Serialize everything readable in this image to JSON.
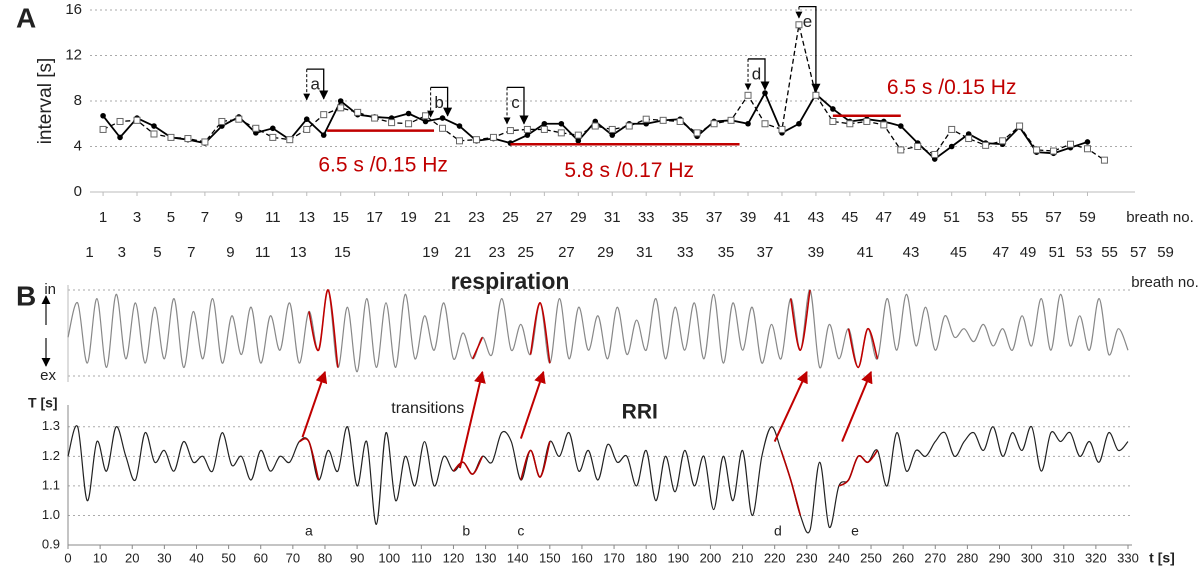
{
  "chart_data": [
    {
      "panel": "A",
      "type": "line",
      "ylabel": "interval [s]",
      "xlabel": "breath no.",
      "x": [
        1,
        2,
        3,
        4,
        5,
        6,
        7,
        8,
        9,
        10,
        11,
        12,
        13,
        14,
        15,
        16,
        17,
        18,
        19,
        20,
        21,
        22,
        23,
        24,
        25,
        26,
        27,
        28,
        29,
        30,
        31,
        32,
        33,
        34,
        35,
        36,
        37,
        38,
        39,
        40,
        41,
        42,
        43,
        44,
        45,
        46,
        47,
        48,
        49,
        50,
        51,
        52,
        53,
        54,
        55,
        56,
        57,
        58,
        59,
        60
      ],
      "xlim": [
        0.23,
        61.8
      ],
      "xticks": [
        1,
        3,
        5,
        7,
        9,
        11,
        13,
        15,
        17,
        19,
        21,
        23,
        25,
        27,
        29,
        31,
        33,
        35,
        37,
        39,
        41,
        43,
        45,
        47,
        49,
        51,
        53,
        55,
        57,
        59
      ],
      "ylim": [
        0,
        16
      ],
      "yticks": [
        0,
        4,
        8,
        12,
        16
      ],
      "grid": true,
      "series": [
        {
          "style": "solid",
          "marker": "dot",
          "color": "#000000",
          "values": [
            6.7,
            4.8,
            6.5,
            5.8,
            4.8,
            4.6,
            4.3,
            5.8,
            6.6,
            5.2,
            5.6,
            4.6,
            6.4,
            5.0,
            8.0,
            6.8,
            6.6,
            6.5,
            6.9,
            6.2,
            6.5,
            5.8,
            4.5,
            4.7,
            4.3,
            5.0,
            6.0,
            6.0,
            4.5,
            6.2,
            5.0,
            6.0,
            6.0,
            6.3,
            6.4,
            4.9,
            6.2,
            6.3,
            6.0,
            8.7,
            5.2,
            6.0,
            8.6,
            7.3,
            6.2,
            6.4,
            6.2,
            5.8,
            4.3,
            2.9,
            4.0,
            5.1,
            4.3,
            4.2,
            5.7,
            3.5,
            3.4,
            3.9,
            4.4,
            null
          ]
        },
        {
          "style": "dashed",
          "marker": "square",
          "color": "#000000",
          "values": [
            5.5,
            6.2,
            6.3,
            5.1,
            4.8,
            4.7,
            4.4,
            6.2,
            6.4,
            5.6,
            4.8,
            4.6,
            5.5,
            6.8,
            7.4,
            7.0,
            6.5,
            6.1,
            6.0,
            6.7,
            5.6,
            4.5,
            4.6,
            4.8,
            5.4,
            5.5,
            5.5,
            5.2,
            5.0,
            5.8,
            5.5,
            5.8,
            6.4,
            6.3,
            6.2,
            5.2,
            6.0,
            6.3,
            8.5,
            6.0,
            5.5,
            14.7,
            8.5,
            6.2,
            6.0,
            6.2,
            5.9,
            3.7,
            4.0,
            3.3,
            5.5,
            4.7,
            4.1,
            4.5,
            5.8,
            3.7,
            3.6,
            4.2,
            3.8,
            2.8
          ]
        }
      ],
      "x2label": "breath no.",
      "x2_labels": [
        {
          "value": 0.2,
          "label": "1"
        },
        {
          "value": 2.1,
          "label": "3"
        },
        {
          "value": 4.2,
          "label": "5"
        },
        {
          "value": 6.2,
          "label": "7"
        },
        {
          "value": 8.5,
          "label": "9"
        },
        {
          "value": 10.4,
          "label": "11"
        },
        {
          "value": 12.5,
          "label": "13"
        },
        {
          "value": 15.1,
          "label": "15"
        },
        {
          "value": 20.3,
          "label": "19"
        },
        {
          "value": 22.2,
          "label": "21"
        },
        {
          "value": 24.2,
          "label": "23"
        },
        {
          "value": 25.9,
          "label": "25"
        },
        {
          "value": 28.3,
          "label": "27"
        },
        {
          "value": 30.6,
          "label": "29"
        },
        {
          "value": 32.9,
          "label": "31"
        },
        {
          "value": 35.3,
          "label": "33"
        },
        {
          "value": 37.7,
          "label": "35"
        },
        {
          "value": 40.0,
          "label": "37"
        },
        {
          "value": 43.0,
          "label": "39"
        },
        {
          "value": 45.9,
          "label": "41"
        },
        {
          "value": 48.6,
          "label": "43"
        },
        {
          "value": 51.4,
          "label": "45"
        },
        {
          "value": 53.9,
          "label": "47"
        },
        {
          "value": 55.5,
          "label": "49"
        },
        {
          "value": 57.2,
          "label": "51"
        },
        {
          "value": 58.8,
          "label": "53"
        },
        {
          "value": 60.3,
          "label": "55"
        },
        {
          "value": 62.0,
          "label": "57"
        },
        {
          "value": 63.6,
          "label": "59"
        }
      ],
      "annotations": [
        "a",
        "b",
        "c",
        "d",
        "e",
        "6.5 s /0.15 Hz",
        "5.8 s /0.17 Hz",
        "6.5 s /0.15 Hz"
      ]
    },
    {
      "panel": "B",
      "type": "line",
      "title": "respiration",
      "color": "#888888",
      "highlight_color": "#c00000",
      "x": [
        0,
        3,
        6,
        9,
        12,
        15,
        18,
        21,
        24,
        27,
        30,
        33,
        36,
        39,
        42,
        45,
        48,
        51,
        54,
        57,
        60,
        63,
        66,
        69,
        72,
        75,
        78,
        81,
        84,
        87,
        90,
        93,
        96,
        99,
        102,
        105,
        108,
        111,
        114,
        117,
        120,
        123,
        126,
        129,
        132,
        135,
        138,
        141,
        144,
        147,
        150,
        153,
        156,
        159,
        162,
        165,
        168,
        171,
        174,
        177,
        180,
        183,
        186,
        189,
        192,
        195,
        198,
        201,
        204,
        207,
        210,
        213,
        216,
        219,
        222,
        225,
        228,
        231,
        234,
        237,
        240,
        243,
        246,
        249,
        252,
        255,
        258,
        261,
        264,
        267,
        270,
        273,
        276,
        279,
        282,
        285,
        288,
        291,
        294,
        297,
        300,
        303,
        306,
        309,
        312,
        315,
        318,
        321,
        324,
        327,
        330
      ],
      "values": [
        0.45,
        0.85,
        0.15,
        0.9,
        0.1,
        0.95,
        0.2,
        0.85,
        0.15,
        0.8,
        0.2,
        0.9,
        0.1,
        0.75,
        0.2,
        0.9,
        0.15,
        0.7,
        0.25,
        0.8,
        0.15,
        0.7,
        0.3,
        0.85,
        0.15,
        0.75,
        0.3,
        1.0,
        0.1,
        0.8,
        0.05,
        0.9,
        0.1,
        0.85,
        0.1,
        0.95,
        0.2,
        0.7,
        0.3,
        0.85,
        0.2,
        0.5,
        0.2,
        0.45,
        0.25,
        0.9,
        0.3,
        0.6,
        0.25,
        0.85,
        0.15,
        0.9,
        0.2,
        0.8,
        0.3,
        0.7,
        0.2,
        0.8,
        0.25,
        0.65,
        0.3,
        0.9,
        0.2,
        0.8,
        0.3,
        0.85,
        0.2,
        0.95,
        0.15,
        0.85,
        0.3,
        0.8,
        0.15,
        0.6,
        0.2,
        0.9,
        0.3,
        1.0,
        0.1,
        0.6,
        0.2,
        0.55,
        0.1,
        0.55,
        0.2,
        0.9,
        0.3,
        0.95,
        0.35,
        0.8,
        0.3,
        0.7,
        0.45,
        0.55,
        0.4,
        0.6,
        0.35,
        0.55,
        0.3,
        0.7,
        0.35,
        0.9,
        0.3,
        0.95,
        0.35,
        0.7,
        0.3,
        0.9,
        0.25,
        0.55,
        0.3
      ],
      "xlim": [
        0,
        330
      ],
      "ylim": [
        0,
        1
      ],
      "yticks": [
        {
          "value": 1,
          "label": "in"
        },
        {
          "value": 0,
          "label": "ex"
        }
      ],
      "grid": true,
      "highlights": [
        [
          74,
          84
        ],
        [
          124,
          131
        ],
        [
          144,
          150
        ],
        [
          225,
          233
        ],
        [
          243,
          252
        ]
      ]
    },
    {
      "type": "line",
      "ylabel": "T [s]",
      "xlabel": "t [s]",
      "color": "#222222",
      "highlight_color": "#b00000",
      "x": [
        0,
        3,
        6,
        9,
        12,
        15,
        18,
        21,
        24,
        27,
        30,
        33,
        36,
        39,
        42,
        45,
        48,
        51,
        54,
        57,
        60,
        63,
        66,
        69,
        72,
        75,
        78,
        81,
        84,
        87,
        90,
        93,
        96,
        99,
        102,
        105,
        108,
        111,
        114,
        117,
        120,
        123,
        126,
        129,
        132,
        135,
        138,
        141,
        144,
        147,
        150,
        153,
        156,
        159,
        162,
        165,
        168,
        171,
        174,
        177,
        180,
        183,
        186,
        189,
        192,
        195,
        198,
        201,
        204,
        207,
        210,
        213,
        216,
        219,
        222,
        225,
        228,
        231,
        234,
        237,
        240,
        243,
        246,
        249,
        252,
        255,
        258,
        261,
        264,
        267,
        270,
        273,
        276,
        279,
        282,
        285,
        288,
        291,
        294,
        297,
        300,
        303,
        306,
        309,
        312,
        315,
        318,
        321,
        324,
        327,
        330
      ],
      "values": [
        1.2,
        1.3,
        1.05,
        1.25,
        1.15,
        1.3,
        1.2,
        1.12,
        1.28,
        1.18,
        1.22,
        1.15,
        1.25,
        1.18,
        1.2,
        1.15,
        1.28,
        1.17,
        1.2,
        1.12,
        1.22,
        1.15,
        1.2,
        1.18,
        1.25,
        1.25,
        1.12,
        1.22,
        1.15,
        1.3,
        1.1,
        1.25,
        0.97,
        1.28,
        1.05,
        1.2,
        1.1,
        1.25,
        1.1,
        1.2,
        1.15,
        1.18,
        1.14,
        1.2,
        1.18,
        1.28,
        1.25,
        1.12,
        1.22,
        1.13,
        1.25,
        1.2,
        1.28,
        1.15,
        1.22,
        1.12,
        1.24,
        1.18,
        1.2,
        1.1,
        1.22,
        1.05,
        1.2,
        1.08,
        1.22,
        1.1,
        1.2,
        1.02,
        1.2,
        1.05,
        1.22,
        1.0,
        1.2,
        1.3,
        1.22,
        1.12,
        1.0,
        0.95,
        1.18,
        0.96,
        1.1,
        1.12,
        1.2,
        1.18,
        1.22,
        1.1,
        1.28,
        1.15,
        1.22,
        1.2,
        1.25,
        1.28,
        1.2,
        1.25,
        1.28,
        1.22,
        1.3,
        1.2,
        1.28,
        1.22,
        1.3,
        1.15,
        1.28,
        1.25,
        1.28,
        1.2,
        1.25,
        1.18,
        1.28,
        1.22,
        1.25
      ],
      "xlim": [
        0,
        330
      ],
      "xticks": [
        0,
        10,
        20,
        30,
        40,
        50,
        60,
        70,
        80,
        90,
        100,
        110,
        120,
        130,
        140,
        150,
        160,
        170,
        180,
        190,
        200,
        210,
        220,
        230,
        240,
        250,
        260,
        270,
        280,
        290,
        300,
        310,
        320,
        330
      ],
      "ylim": [
        0.9,
        1.35
      ],
      "yticks": [
        0.9,
        {
          "value": 1,
          "label": "1.0"
        },
        1.1,
        1.2,
        1.3
      ],
      "grid": true,
      "highlights": [
        [
          70,
          80
        ],
        [
          120,
          130
        ],
        [
          140,
          150
        ],
        [
          220,
          230
        ],
        [
          240,
          252
        ]
      ],
      "annotations": [
        "transitions",
        "RRI",
        "a",
        "b",
        "c",
        "d",
        "e"
      ]
    }
  ]
}
